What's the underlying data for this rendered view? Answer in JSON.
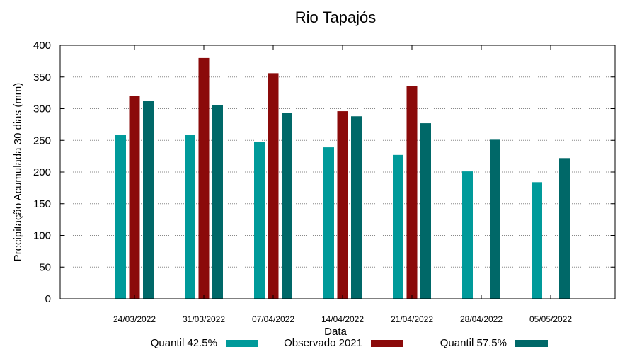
{
  "chart_data": {
    "type": "bar",
    "title": "Rio Tapajós",
    "xlabel": "Data",
    "ylabel": "Precipitação Acumulada 30 dias (mm)",
    "ylim": [
      0,
      400
    ],
    "yticks": [
      0,
      50,
      100,
      150,
      200,
      250,
      300,
      350,
      400
    ],
    "grid": true,
    "legend": "bottom",
    "categories": [
      "24/03/2022",
      "31/03/2022",
      "07/04/2022",
      "14/04/2022",
      "21/04/2022",
      "28/04/2022",
      "05/05/2022"
    ],
    "series": [
      {
        "name": "Quantil 42.5%",
        "color": "#009a9a",
        "values": [
          259,
          259,
          248,
          239,
          227,
          201,
          184
        ]
      },
      {
        "name": "Observado 2021",
        "color": "#8b0a0a",
        "values": [
          320,
          380,
          356,
          296,
          336,
          null,
          null
        ]
      },
      {
        "name": "Quantil 57.5%",
        "color": "#006868",
        "values": [
          312,
          306,
          293,
          288,
          277,
          251,
          222
        ]
      }
    ]
  }
}
